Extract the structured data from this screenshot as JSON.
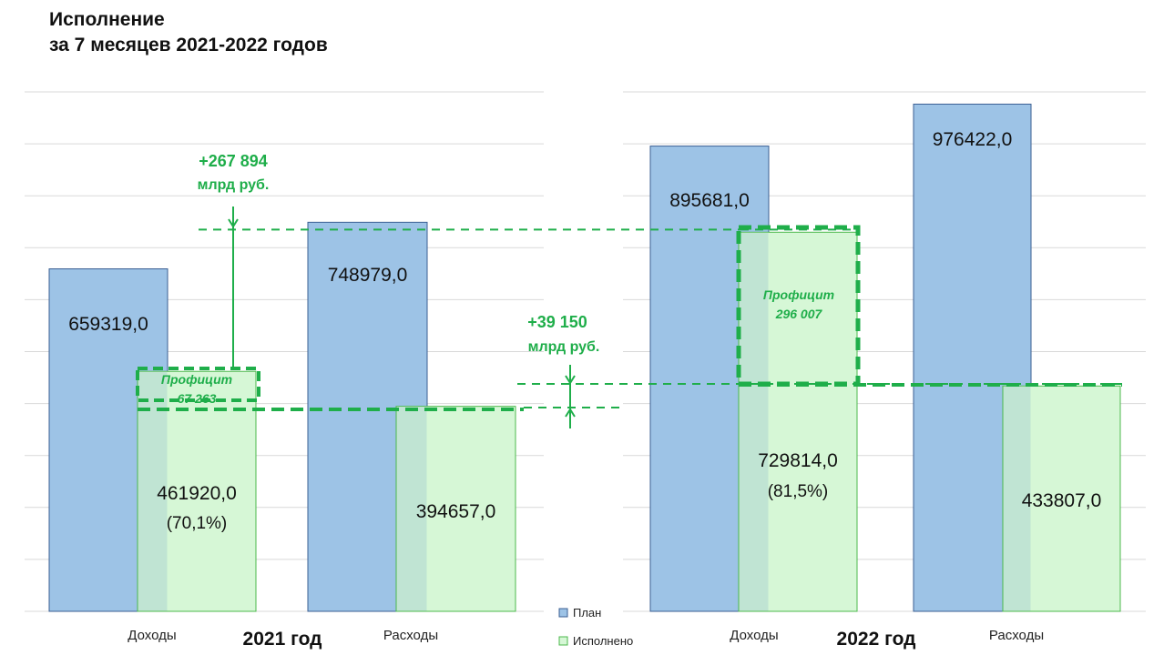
{
  "title": {
    "line1": "Исполнение",
    "line2": "за 7 месяцев 2021-2022 годов"
  },
  "legend": {
    "plan": "План",
    "done": "Исполнено"
  },
  "colors": {
    "plan_fill": "#9dc3e6",
    "plan_stroke": "#3b5f93",
    "done_fill": "#d6f7d6",
    "done_stroke": "#4cb84c",
    "overlap_fill": "#c0e4d3",
    "accent_green": "#1fae4a",
    "grid": "#d9d9d9"
  },
  "chart_data": [
    {
      "type": "bar",
      "group_label": "2021 год",
      "categories": [
        "Доходы",
        "Расходы"
      ],
      "series": [
        {
          "name": "План",
          "values": [
            659319.0,
            748979.0
          ],
          "labels": [
            "659319,0",
            "748979,0"
          ]
        },
        {
          "name": "Исполнено",
          "values": [
            461920.0,
            394657.0
          ],
          "labels": [
            "461920,0",
            "394657,0"
          ],
          "percent_labels": [
            "(70,1%)",
            ""
          ]
        }
      ],
      "ylim": [
        0,
        1000000
      ],
      "surplus": {
        "label1": "Профицит",
        "label2": "67 263"
      },
      "plan_diff": {
        "line1": "+267 894",
        "line2": "млрд руб."
      }
    },
    {
      "type": "bar",
      "group_label": "2022 год",
      "categories": [
        "Доходы",
        "Расходы"
      ],
      "series": [
        {
          "name": "План",
          "values": [
            895681.0,
            976422.0
          ],
          "labels": [
            "895681,0",
            "976422,0"
          ]
        },
        {
          "name": "Исполнено",
          "values": [
            729814.0,
            433807.0
          ],
          "labels": [
            "729814,0",
            "433807,0"
          ],
          "percent_labels": [
            "(81,5%)",
            ""
          ]
        }
      ],
      "ylim": [
        0,
        1000000
      ],
      "surplus": {
        "label1": "Профицит",
        "label2": "296 007"
      }
    }
  ],
  "expense_diff": {
    "line1": "+39 150",
    "line2": "млрд руб."
  }
}
